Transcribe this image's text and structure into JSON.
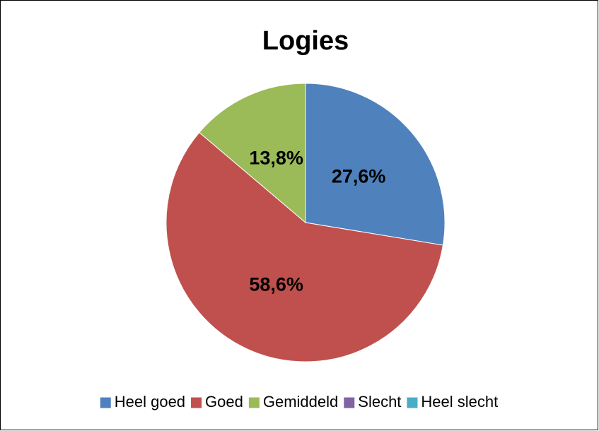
{
  "chart_data": {
    "type": "pie",
    "title": "Logies",
    "categories": [
      "Heel goed",
      "Goed",
      "Gemiddeld",
      "Slecht",
      "Heel slecht"
    ],
    "values": [
      27.6,
      58.6,
      13.8,
      0,
      0
    ],
    "value_labels": [
      "27,6%",
      "58,6%",
      "13,8%",
      null,
      null
    ],
    "colors": [
      "#4f81bd",
      "#c0504d",
      "#9bbb59",
      "#8064a2",
      "#4bacc6"
    ],
    "legend": "bottom"
  }
}
